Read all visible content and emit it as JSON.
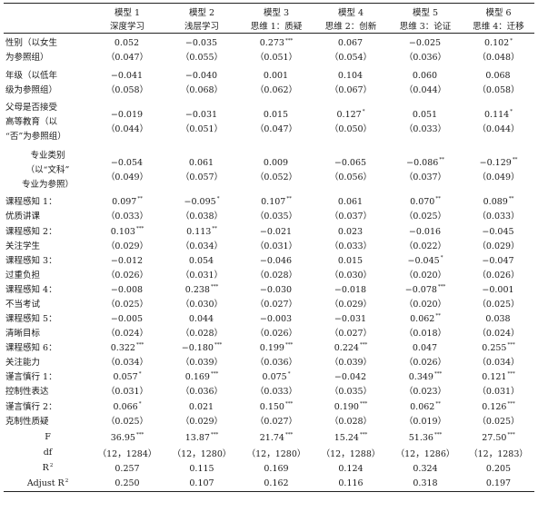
{
  "headers": {
    "models": [
      "模型 1",
      "模型 2",
      "模型 3",
      "模型 4",
      "模型 5",
      "模型 6"
    ],
    "dvs": [
      "深度学习",
      "浅层学习",
      "思维 1：质疑",
      "思维 2：创新",
      "思维 3：论证",
      "思维 4：迁移"
    ]
  },
  "rows": [
    {
      "label": [
        "性别（以女生",
        "为参照组）"
      ],
      "coef": [
        "0.052",
        "−0.035",
        "0.273",
        "0.067",
        "−0.025",
        "0.102"
      ],
      "sig": [
        "",
        "",
        "***",
        "",
        "",
        "*"
      ],
      "se": [
        "（0.047）",
        "（0.055）",
        "（0.051）",
        "（0.054）",
        "（0.036）",
        "（0.048）"
      ]
    },
    {
      "label": [
        "年级（以低年",
        "级为参照组）"
      ],
      "coef": [
        "−0.041",
        "−0.040",
        "0.001",
        "0.104",
        "0.060",
        "0.068"
      ],
      "sig": [
        "",
        "",
        "",
        "",
        "",
        ""
      ],
      "se": [
        "（0.058）",
        "（0.068）",
        "（0.062）",
        "（0.067）",
        "（0.044）",
        "（0.058）"
      ]
    },
    {
      "label": [
        "父母是否接受",
        "高等教育（以",
        "“否”为参照组）"
      ],
      "coef": [
        "−0.019",
        "−0.031",
        "0.015",
        "0.127",
        "0.051",
        "0.114"
      ],
      "sig": [
        "",
        "",
        "",
        "*",
        "",
        "*"
      ],
      "se": [
        "（0.044）",
        "（0.051）",
        "（0.047）",
        "（0.050）",
        "（0.033）",
        "（0.044）"
      ]
    },
    {
      "label": [
        "专业类别",
        "（以“文科”",
        "专业为参照）"
      ],
      "center": true,
      "coef": [
        "−0.054",
        "0.061",
        "0.009",
        "−0.065",
        "−0.086",
        "−0.129"
      ],
      "sig": [
        "",
        "",
        "",
        "",
        "**",
        "**"
      ],
      "se": [
        "（0.049）",
        "（0.057）",
        "（0.052）",
        "（0.056）",
        "（0.037）",
        "（0.049）"
      ]
    },
    {
      "label": [
        "课程感知 1：",
        "优质讲课"
      ],
      "coef": [
        "0.097",
        "−0.095",
        "0.107",
        "0.061",
        "0.070",
        "0.089"
      ],
      "sig": [
        "**",
        "*",
        "**",
        "",
        "**",
        "**"
      ],
      "se": [
        "（0.033）",
        "（0.038）",
        "（0.035）",
        "（0.037）",
        "（0.025）",
        "（0.033）"
      ]
    },
    {
      "label": [
        "课程感知 2：",
        "关注学生"
      ],
      "coef": [
        "0.103",
        "0.113",
        "−0.021",
        "0.023",
        "−0.016",
        "−0.045"
      ],
      "sig": [
        "***",
        "**",
        "",
        "",
        "",
        ""
      ],
      "se": [
        "（0.029）",
        "（0.034）",
        "（0.031）",
        "（0.033）",
        "（0.022）",
        "（0.029）"
      ]
    },
    {
      "label": [
        "课程感知 3：",
        "过重负担"
      ],
      "coef": [
        "−0.012",
        "0.054",
        "−0.046",
        "0.015",
        "−0.045",
        "−0.047"
      ],
      "sig": [
        "",
        "",
        "",
        "",
        "*",
        ""
      ],
      "se": [
        "（0.026）",
        "（0.031）",
        "（0.028）",
        "（0.030）",
        "（0.020）",
        "（0.026）"
      ]
    },
    {
      "label": [
        "课程感知 4：",
        "不当考试"
      ],
      "coef": [
        "−0.008",
        "0.238",
        "−0.030",
        "−0.018",
        "−0.078",
        "−0.001"
      ],
      "sig": [
        "",
        "***",
        "",
        "",
        "***",
        ""
      ],
      "se": [
        "（0.025）",
        "（0.030）",
        "（0.027）",
        "（0.029）",
        "（0.020）",
        "（0.025）"
      ]
    },
    {
      "label": [
        "课程感知 5：",
        "清晰目标"
      ],
      "coef": [
        "−0.005",
        "0.044",
        "−0.003",
        "−0.031",
        "0.062",
        "0.038"
      ],
      "sig": [
        "",
        "",
        "",
        "",
        "**",
        ""
      ],
      "se": [
        "（0.024）",
        "（0.028）",
        "（0.026）",
        "（0.027）",
        "（0.018）",
        "（0.024）"
      ]
    },
    {
      "label": [
        "课程感知 6：",
        "关注能力"
      ],
      "coef": [
        "0.322",
        "−0.180",
        "0.199",
        "0.224",
        "0.047",
        "0.255"
      ],
      "sig": [
        "***",
        "***",
        "***",
        "***",
        "",
        "***"
      ],
      "se": [
        "（0.034）",
        "（0.039）",
        "（0.036）",
        "（0.039）",
        "（0.026）",
        "（0.034）"
      ]
    },
    {
      "label": [
        "谨言慎行 1：",
        "控制性表达"
      ],
      "coef": [
        "0.057",
        "0.169",
        "0.075",
        "−0.042",
        "0.349",
        "0.121"
      ],
      "sig": [
        "*",
        "***",
        "*",
        "",
        "***",
        "***"
      ],
      "se": [
        "（0.031）",
        "（0.036）",
        "（0.033）",
        "（0.035）",
        "（0.023）",
        "（0.031）"
      ]
    },
    {
      "label": [
        "谨言慎行 2：",
        "克制性质疑"
      ],
      "coef": [
        "0.066",
        "0.021",
        "0.150",
        "0.190",
        "0.062",
        "0.126"
      ],
      "sig": [
        "*",
        "",
        "***",
        "***",
        "**",
        "***"
      ],
      "se": [
        "（0.025）",
        "（0.029）",
        "（0.027）",
        "（0.028）",
        "（0.019）",
        "（0.025）"
      ]
    }
  ],
  "stats": {
    "F": {
      "label": "F",
      "values": [
        "36.95",
        "13.87",
        "21.74",
        "15.24",
        "51.36",
        "27.50"
      ],
      "sig": [
        "***",
        "***",
        "***",
        "***",
        "***",
        "***"
      ]
    },
    "df": {
      "label": "df",
      "values": [
        "（12，1284）",
        "（12，1280）",
        "（12，1280）",
        "（12，1288）",
        "（12，1286）",
        "（12，1283）"
      ]
    },
    "R2": {
      "label": "R",
      "sup": "2",
      "values": [
        "0.257",
        "0.115",
        "0.169",
        "0.124",
        "0.324",
        "0.205"
      ]
    },
    "AdjR2": {
      "label": "Adjust R",
      "sup": "2",
      "values": [
        "0.250",
        "0.107",
        "0.162",
        "0.116",
        "0.318",
        "0.197"
      ]
    }
  }
}
